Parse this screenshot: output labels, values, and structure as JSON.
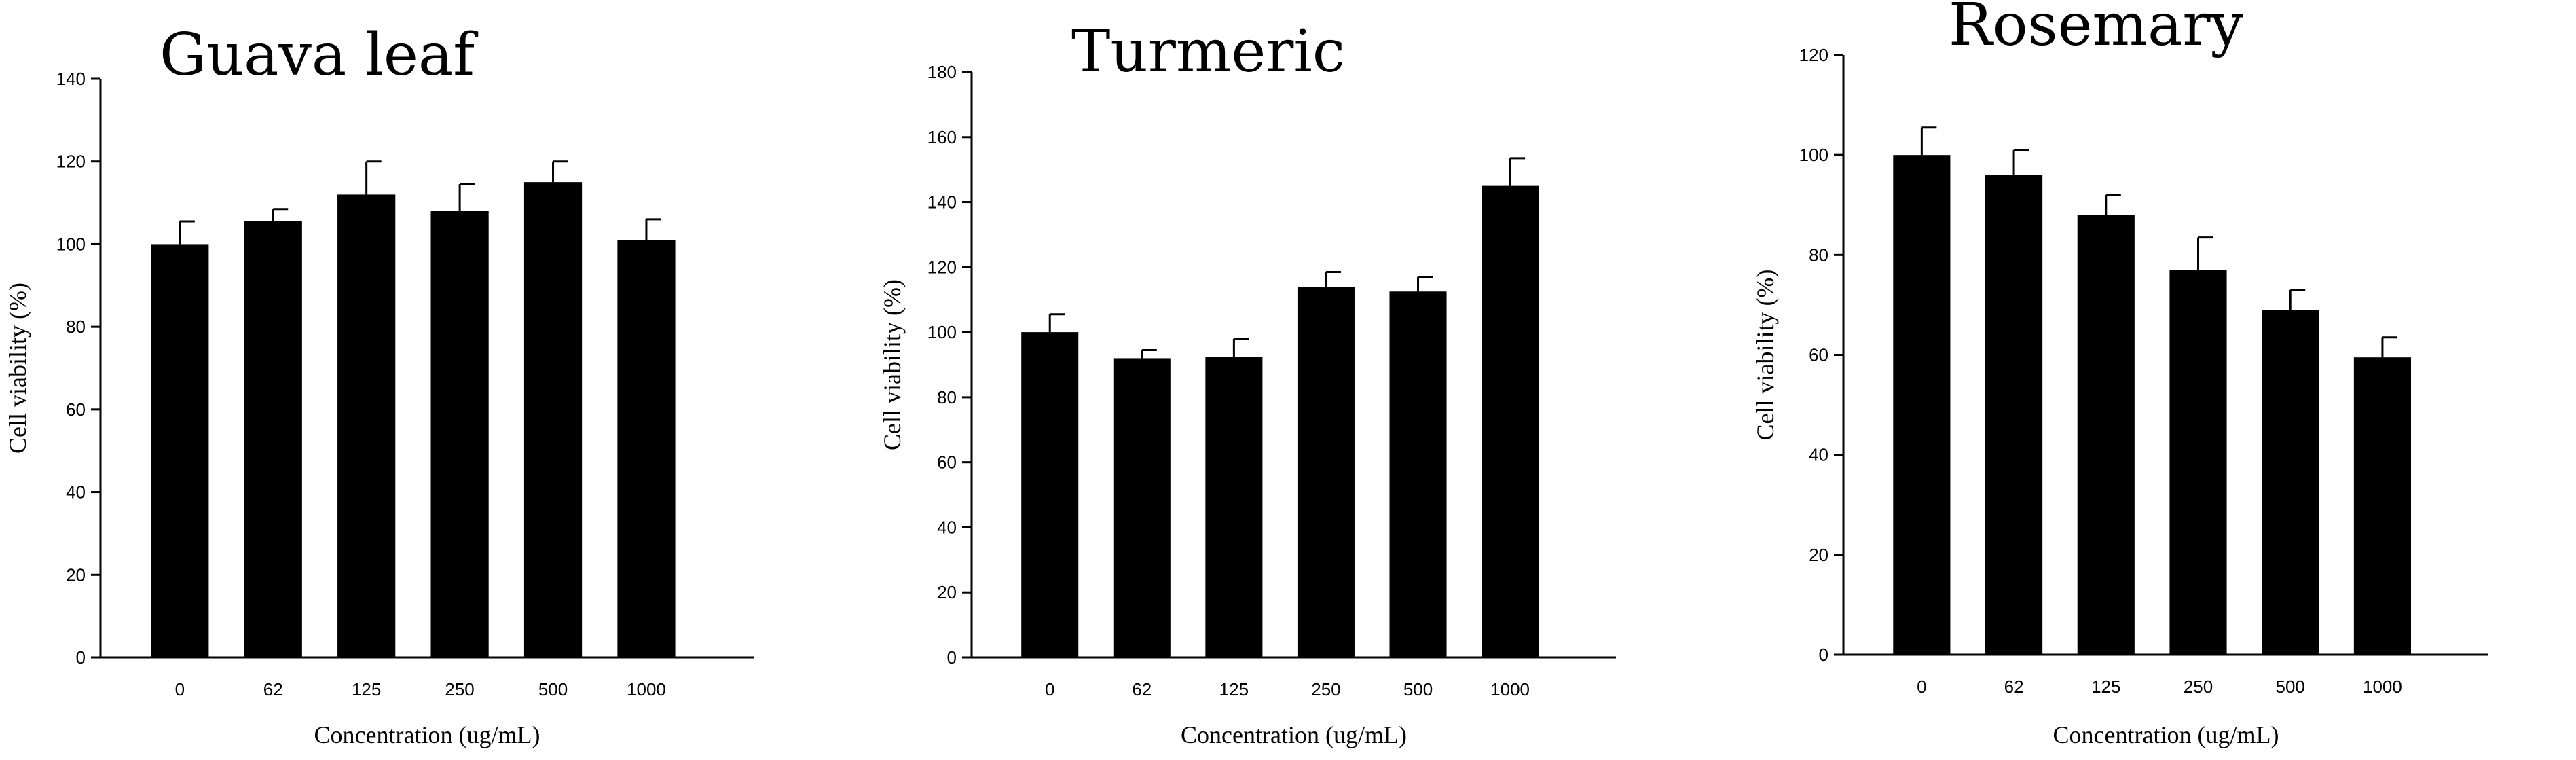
{
  "chart_data": [
    {
      "type": "bar",
      "title": "Guava leaf",
      "xlabel": "Concentration (ug/mL)",
      "ylabel": "Cell viability (%)",
      "categories": [
        "0",
        "62",
        "125",
        "250",
        "500",
        "1000"
      ],
      "values": [
        100,
        105.5,
        112,
        108,
        115,
        101
      ],
      "errors": [
        5.5,
        3,
        8,
        6.5,
        5,
        5
      ],
      "ylim": [
        0,
        140
      ],
      "yticks": [
        0,
        20,
        40,
        60,
        80,
        100,
        120,
        140
      ],
      "grid": false,
      "bar_color": "#000000"
    },
    {
      "type": "bar",
      "title": "Turmeric",
      "xlabel": "Concentration (ug/mL)",
      "ylabel": "Cell viability (%)",
      "categories": [
        "0",
        "62",
        "125",
        "250",
        "500",
        "1000"
      ],
      "values": [
        100,
        92,
        92.5,
        114,
        112.5,
        145
      ],
      "errors": [
        5.5,
        2.5,
        5.5,
        4.5,
        4.5,
        8.5
      ],
      "ylim": [
        0,
        180
      ],
      "yticks": [
        0,
        20,
        40,
        60,
        80,
        100,
        120,
        140,
        160,
        180
      ],
      "grid": false,
      "bar_color": "#000000"
    },
    {
      "type": "bar",
      "title": "Rosemary",
      "xlabel": "Concentration (ug/mL)",
      "ylabel": "Cell viability (%)",
      "categories": [
        "0",
        "62",
        "125",
        "250",
        "500",
        "1000"
      ],
      "values": [
        100,
        96,
        88,
        77,
        69,
        59.5
      ],
      "errors": [
        5.5,
        5,
        4,
        6.5,
        4,
        4
      ],
      "ylim": [
        0,
        120
      ],
      "yticks": [
        0,
        20,
        40,
        60,
        80,
        100,
        120
      ],
      "grid": false,
      "bar_color": "#000000"
    }
  ]
}
